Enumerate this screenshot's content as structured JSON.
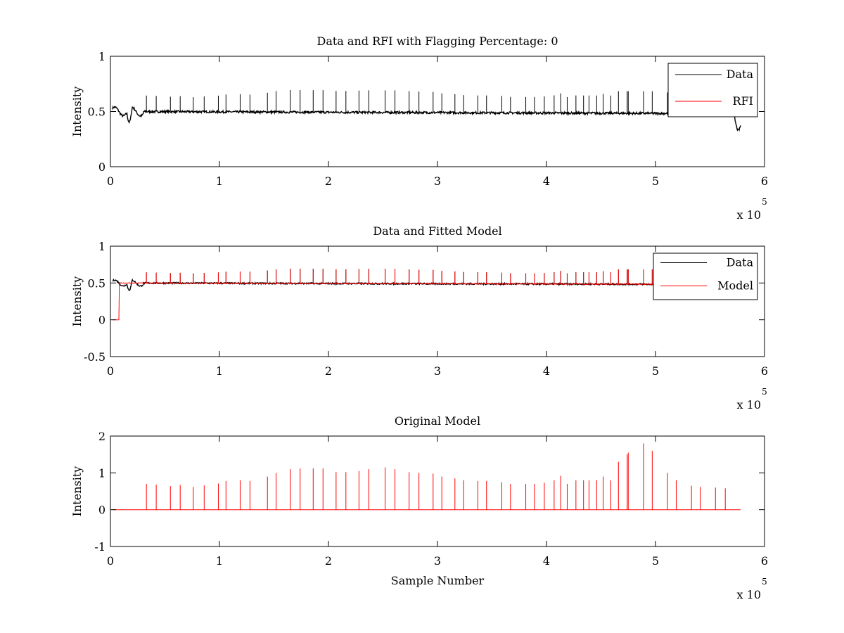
{
  "chart_data": [
    {
      "type": "line",
      "title": "Data and RFI with Flagging Percentage: 0",
      "xlabel": "",
      "ylabel": "Intensity",
      "xlim": [
        0,
        6
      ],
      "ylim": [
        0,
        1
      ],
      "xticks": [
        "0",
        "1",
        "2",
        "3",
        "4",
        "5",
        "6"
      ],
      "yticks": [
        "0",
        "0.5",
        "1"
      ],
      "x_multiplier": {
        "base": "x 10",
        "exponent": "5"
      },
      "legend": {
        "position": "top-right",
        "entries": [
          "Data",
          "RFI"
        ]
      },
      "series": [
        {
          "name": "Data",
          "color": "#000000",
          "kind": "data",
          "baseline": 0.5,
          "trend_end": 0.48,
          "spike_scale": 1.0
        },
        {
          "name": "RFI",
          "color": "#ff0000",
          "kind": "empty"
        }
      ]
    },
    {
      "type": "line",
      "title": "Data and Fitted Model",
      "xlabel": "",
      "ylabel": "Intensity",
      "xlim": [
        0,
        6
      ],
      "ylim": [
        -0.5,
        1
      ],
      "xticks": [
        "0",
        "1",
        "2",
        "3",
        "4",
        "5",
        "6"
      ],
      "yticks": [
        "-0.5",
        "0",
        "0.5",
        "1"
      ],
      "x_multiplier": {
        "base": "x 10",
        "exponent": "5"
      },
      "legend": {
        "position": "top-right",
        "entries": [
          "Data",
          "Model"
        ]
      },
      "series": [
        {
          "name": "Data",
          "color": "#000000",
          "kind": "data",
          "baseline": 0.5,
          "trend_end": 0.48,
          "spike_scale": 1.0
        },
        {
          "name": "Model",
          "color": "#ff0000",
          "kind": "model",
          "baseline": 0.5,
          "trend_end": 0.48,
          "spike_scale": 1.0
        }
      ]
    },
    {
      "type": "line",
      "title": "Original Model",
      "xlabel": "Sample Number",
      "ylabel": "Intensity",
      "xlim": [
        0,
        6
      ],
      "ylim": [
        -1,
        2
      ],
      "xticks": [
        "0",
        "1",
        "2",
        "3",
        "4",
        "5",
        "6"
      ],
      "yticks": [
        "-1",
        "0",
        "1",
        "2"
      ],
      "x_multiplier": {
        "base": "x 10",
        "exponent": "5"
      },
      "legend": null,
      "series": [
        {
          "name": "Original Model",
          "color": "#ff0000",
          "kind": "spikes",
          "baseline": 0,
          "trend_end": 0,
          "spike_scale": 1.0
        }
      ]
    }
  ],
  "spikes": [
    {
      "x": 0.33,
      "h": 0.7
    },
    {
      "x": 0.42,
      "h": 0.68
    },
    {
      "x": 0.55,
      "h": 0.64
    },
    {
      "x": 0.64,
      "h": 0.67
    },
    {
      "x": 0.76,
      "h": 0.62
    },
    {
      "x": 0.86,
      "h": 0.66
    },
    {
      "x": 0.99,
      "h": 0.71
    },
    {
      "x": 1.06,
      "h": 0.78
    },
    {
      "x": 1.19,
      "h": 0.8
    },
    {
      "x": 1.28,
      "h": 0.78
    },
    {
      "x": 1.44,
      "h": 0.9
    },
    {
      "x": 1.52,
      "h": 1.0
    },
    {
      "x": 1.65,
      "h": 1.1
    },
    {
      "x": 1.74,
      "h": 1.12
    },
    {
      "x": 1.86,
      "h": 1.12
    },
    {
      "x": 1.95,
      "h": 1.12
    },
    {
      "x": 2.07,
      "h": 1.02
    },
    {
      "x": 2.16,
      "h": 1.02
    },
    {
      "x": 2.28,
      "h": 1.05
    },
    {
      "x": 2.37,
      "h": 1.1
    },
    {
      "x": 2.52,
      "h": 1.15
    },
    {
      "x": 2.61,
      "h": 1.1
    },
    {
      "x": 2.74,
      "h": 1.02
    },
    {
      "x": 2.83,
      "h": 1.0
    },
    {
      "x": 2.96,
      "h": 0.98
    },
    {
      "x": 3.04,
      "h": 0.9
    },
    {
      "x": 3.16,
      "h": 0.85
    },
    {
      "x": 3.24,
      "h": 0.8
    },
    {
      "x": 3.37,
      "h": 0.78
    },
    {
      "x": 3.45,
      "h": 0.78
    },
    {
      "x": 3.59,
      "h": 0.75
    },
    {
      "x": 3.67,
      "h": 0.7
    },
    {
      "x": 3.81,
      "h": 0.7
    },
    {
      "x": 3.89,
      "h": 0.7
    },
    {
      "x": 3.98,
      "h": 0.73
    },
    {
      "x": 4.07,
      "h": 0.8
    },
    {
      "x": 4.13,
      "h": 0.92
    },
    {
      "x": 4.19,
      "h": 0.7
    },
    {
      "x": 4.27,
      "h": 0.8
    },
    {
      "x": 4.34,
      "h": 0.8
    },
    {
      "x": 4.39,
      "h": 0.8
    },
    {
      "x": 4.46,
      "h": 0.8
    },
    {
      "x": 4.52,
      "h": 0.9
    },
    {
      "x": 4.59,
      "h": 0.8
    },
    {
      "x": 4.66,
      "h": 1.3
    },
    {
      "x": 4.74,
      "h": 1.5
    },
    {
      "x": 4.75,
      "h": 1.55
    },
    {
      "x": 4.89,
      "h": 1.8
    },
    {
      "x": 4.97,
      "h": 1.6
    },
    {
      "x": 5.11,
      "h": 1.0
    },
    {
      "x": 5.19,
      "h": 0.8
    },
    {
      "x": 5.33,
      "h": 0.65
    },
    {
      "x": 5.41,
      "h": 0.62
    },
    {
      "x": 5.55,
      "h": 0.6
    },
    {
      "x": 5.64,
      "h": 0.58
    }
  ]
}
